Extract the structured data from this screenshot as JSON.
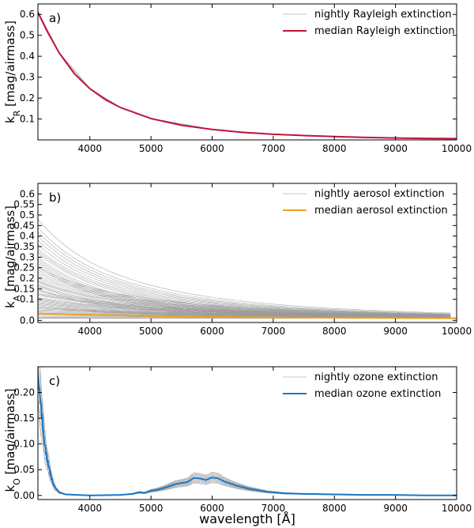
{
  "chart_data": [
    {
      "type": "line",
      "panel_label": "a)",
      "ylabel_main": "k",
      "ylabel_sub": "R",
      "ylabel_unit": " [mag/airmass]",
      "xlabel": "",
      "xlim": [
        3150,
        10000
      ],
      "ylim": [
        0,
        0.65
      ],
      "xticks": [
        4000,
        5000,
        6000,
        7000,
        8000,
        9000,
        10000
      ],
      "xtick_labels": [
        "4000",
        "5000",
        "6000",
        "7000",
        "8000",
        "9000",
        "10000"
      ],
      "yticks": [
        0.1,
        0.2,
        0.3,
        0.4,
        0.5,
        0.6
      ],
      "ytick_labels": [
        "0.1",
        "0.2",
        "0.3",
        "0.4",
        "0.5",
        "0.6"
      ],
      "legend": [
        {
          "label": "nightly Rayleigh extinction",
          "color": "#b0b0b0"
        },
        {
          "label": "median Rayleigh extinction",
          "color": "#c0143c"
        }
      ],
      "legend_position": "top-right",
      "nightly_color": "#9a9a9a",
      "median_color": "#c0143c",
      "median": {
        "x": [
          3150,
          3300,
          3500,
          3750,
          4000,
          4250,
          4500,
          5000,
          5500,
          6000,
          6500,
          7000,
          7500,
          8000,
          8500,
          9000,
          9500,
          10000
        ],
        "y": [
          0.61,
          0.52,
          0.415,
          0.315,
          0.245,
          0.193,
          0.155,
          0.102,
          0.07,
          0.05,
          0.036,
          0.027,
          0.021,
          0.016,
          0.012,
          0.009,
          0.007,
          0.006
        ]
      },
      "nightly": [
        {
          "x": [
            3150,
            3500,
            4000,
            4500,
            5000,
            6000,
            7000,
            8000,
            9000,
            10000
          ],
          "y": [
            0.615,
            0.418,
            0.247,
            0.156,
            0.103,
            0.051,
            0.027,
            0.016,
            0.009,
            0.006
          ]
        },
        {
          "x": [
            3150,
            3500,
            4000,
            4500,
            5000,
            6000,
            7000,
            8000,
            9000,
            10000
          ],
          "y": [
            0.605,
            0.412,
            0.243,
            0.154,
            0.101,
            0.049,
            0.026,
            0.015,
            0.009,
            0.005
          ]
        }
      ]
    },
    {
      "type": "line",
      "panel_label": "b)",
      "ylabel_main": "k",
      "ylabel_sub": "A",
      "ylabel_unit": " [mag/airmass]",
      "xlabel": "",
      "xlim": [
        3150,
        10000
      ],
      "ylim": [
        -0.01,
        0.65
      ],
      "xticks": [
        4000,
        5000,
        6000,
        7000,
        8000,
        9000,
        10000
      ],
      "xtick_labels": [
        "4000",
        "5000",
        "6000",
        "7000",
        "8000",
        "9000",
        "10000"
      ],
      "yticks": [
        0.0,
        0.1,
        0.15,
        0.2,
        0.25,
        0.3,
        0.35,
        0.4,
        0.45,
        0.5,
        0.55,
        0.6
      ],
      "ytick_labels": [
        "0.0",
        "0.1",
        "0.15",
        "0.2",
        "0.25",
        "0.3",
        "0.35",
        "0.4",
        "0.45",
        "0.5",
        "0.55",
        "0.6"
      ],
      "legend": [
        {
          "label": "nightly aerosol extinction",
          "color": "#b0b0b0"
        },
        {
          "label": "median aerosol extinction",
          "color": "#f0a020"
        }
      ],
      "legend_position": "top-right",
      "nightly_color": "#9a9a9a",
      "median_color": "#f0a020",
      "median": {
        "x": [
          3150,
          4000,
          5000,
          6000,
          7000,
          8000,
          9000,
          10000
        ],
        "y": [
          0.033,
          0.026,
          0.021,
          0.017,
          0.014,
          0.012,
          0.011,
          0.01
        ]
      },
      "nightly_k3150": [
        0.48,
        0.44,
        0.42,
        0.4,
        0.38,
        0.36,
        0.34,
        0.33,
        0.32,
        0.3,
        0.29,
        0.28,
        0.27,
        0.26,
        0.25,
        0.24,
        0.23,
        0.22,
        0.21,
        0.2,
        0.19,
        0.185,
        0.18,
        0.17,
        0.165,
        0.16,
        0.15,
        0.145,
        0.14,
        0.13,
        0.125,
        0.12,
        0.11,
        0.105,
        0.1,
        0.095,
        0.09,
        0.085,
        0.08,
        0.075,
        0.07,
        0.065,
        0.06,
        0.055,
        0.05,
        0.045,
        0.04,
        0.035,
        0.03,
        0.025,
        0.02,
        0.015,
        0.012,
        0.01
      ],
      "nightly_k10000": [
        0.03,
        0.028,
        0.026,
        0.025,
        0.024,
        0.023,
        0.022,
        0.02,
        0.018,
        0.016,
        0.014,
        0.012,
        0.01,
        0.008
      ]
    },
    {
      "type": "line",
      "panel_label": "c)",
      "ylabel_main": "k",
      "ylabel_sub": "O",
      "ylabel_unit": " [mag/airmass]",
      "xlabel": "wavelength [Å]",
      "xlim": [
        3150,
        10000
      ],
      "ylim": [
        -0.008,
        0.25
      ],
      "xticks": [
        4000,
        5000,
        6000,
        7000,
        8000,
        9000,
        10000
      ],
      "xtick_labels": [
        "4000",
        "5000",
        "6000",
        "7000",
        "8000",
        "9000",
        "10000"
      ],
      "yticks": [
        0.0,
        0.05,
        0.1,
        0.15,
        0.2
      ],
      "ytick_labels": [
        "0.00",
        "0.05",
        "0.10",
        "0.15",
        "0.20"
      ],
      "legend": [
        {
          "label": "nightly ozone extinction",
          "color": "#b0b0b0"
        },
        {
          "label": "median ozone extinction",
          "color": "#1a78c8"
        }
      ],
      "legend_position": "top-right",
      "nightly_color": "#9a9a9a",
      "median_color": "#1a78c8",
      "median": {
        "x": [
          3150,
          3180,
          3200,
          3220,
          3240,
          3260,
          3280,
          3300,
          3320,
          3340,
          3360,
          3380,
          3400,
          3450,
          3500,
          3600,
          4000,
          4500,
          4700,
          4800,
          4900,
          5000,
          5100,
          5200,
          5300,
          5400,
          5500,
          5600,
          5700,
          5800,
          5900,
          6000,
          6100,
          6200,
          6300,
          6400,
          6500,
          6600,
          6700,
          6800,
          6900,
          7000,
          7200,
          7500,
          8000,
          8500,
          9000,
          9500,
          10000
        ],
        "y": [
          0.22,
          0.2,
          0.17,
          0.15,
          0.12,
          0.1,
          0.085,
          0.07,
          0.06,
          0.05,
          0.04,
          0.03,
          0.022,
          0.012,
          0.006,
          0.002,
          0.0,
          0.001,
          0.003,
          0.006,
          0.005,
          0.009,
          0.011,
          0.014,
          0.018,
          0.022,
          0.024,
          0.026,
          0.034,
          0.033,
          0.03,
          0.035,
          0.033,
          0.027,
          0.023,
          0.019,
          0.016,
          0.013,
          0.011,
          0.009,
          0.007,
          0.006,
          0.004,
          0.003,
          0.002,
          0.001,
          0.001,
          0.0,
          0.0
        ]
      },
      "nightly_scale": [
        0.7,
        0.75,
        0.8,
        0.85,
        0.9,
        0.95,
        1.0,
        1.05,
        1.1,
        1.15,
        1.2,
        1.25,
        1.3
      ]
    }
  ]
}
